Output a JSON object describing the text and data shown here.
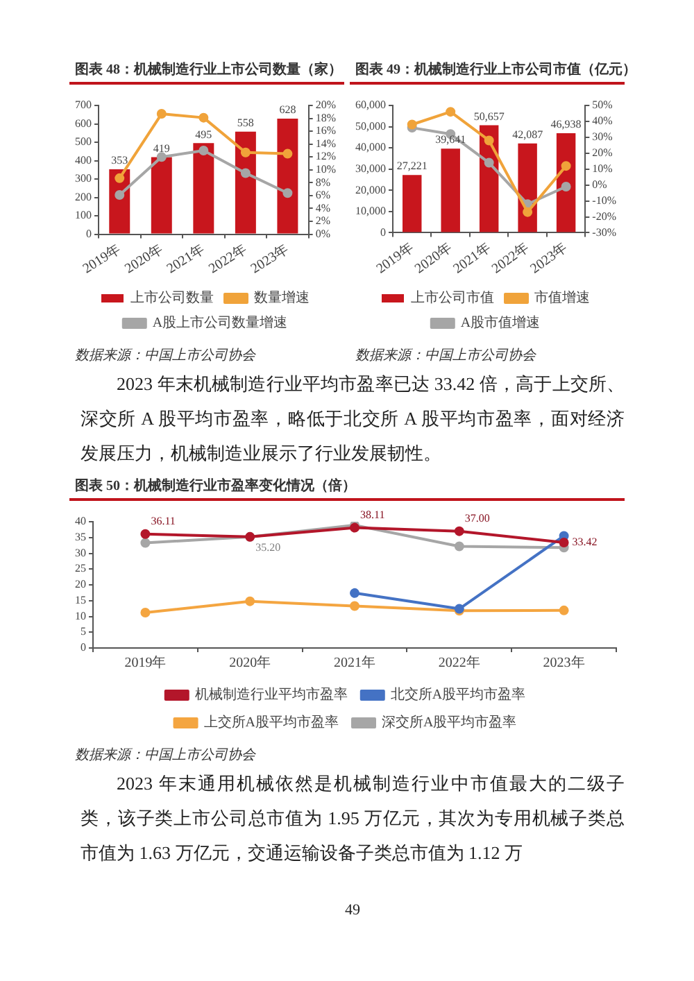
{
  "chart_data": [
    {
      "type": "bar",
      "title": "图表 48：机械制造行业上市公司数量（家）",
      "categories": [
        "2019年",
        "2020年",
        "2021年",
        "2022年",
        "2023年"
      ],
      "series": [
        {
          "name": "上市公司数量",
          "type": "bar",
          "color": "#c8161d",
          "values": [
            353,
            419,
            495,
            558,
            628
          ],
          "value_labels": [
            "353",
            "419",
            "495",
            "558",
            "628"
          ]
        },
        {
          "name": "数量增速",
          "type": "line",
          "axis": "y2",
          "color": "#f0a33a",
          "values": [
            8.7,
            18.7,
            18.1,
            12.7,
            12.5
          ]
        },
        {
          "name": "A股上市公司数量增速",
          "type": "line",
          "axis": "y2",
          "color": "#a6a6a6",
          "values": [
            6.1,
            12.0,
            13.0,
            9.5,
            6.4
          ]
        }
      ],
      "ylim": [
        0,
        700
      ],
      "yticks": [
        0,
        100,
        200,
        300,
        400,
        500,
        600,
        700
      ],
      "y2lim": [
        0,
        20
      ],
      "y2ticks": [
        {
          "value": 0,
          "label": "0%"
        },
        {
          "value": 2,
          "label": "2%"
        },
        {
          "value": 4,
          "label": "4%"
        },
        {
          "value": 6,
          "label": "6%"
        },
        {
          "value": 8,
          "label": "8%"
        },
        {
          "value": 10,
          "label": "10%"
        },
        {
          "value": 12,
          "label": "12%"
        },
        {
          "value": 14,
          "label": "14%"
        },
        {
          "value": 16,
          "label": "16%"
        },
        {
          "value": 18,
          "label": "18%"
        },
        {
          "value": 20,
          "label": "20%"
        }
      ],
      "legend": "bottom",
      "marker": "circle",
      "grid": false,
      "annotations": [
        "数据来源：中国上市公司协会"
      ]
    },
    {
      "type": "bar",
      "title": "图表 49：机械制造行业上市公司市值（亿元）",
      "categories": [
        "2019年",
        "2020年",
        "2021年",
        "2022年",
        "2023年"
      ],
      "series": [
        {
          "name": "上市公司市值",
          "type": "bar",
          "color": "#c8161d",
          "values": [
            27221,
            39641,
            50657,
            42087,
            46938
          ],
          "value_labels": [
            "27,221",
            "39,641",
            "50,657",
            "42,087",
            "46,938"
          ]
        },
        {
          "name": "市值增速",
          "type": "line",
          "axis": "y2",
          "color": "#f0a33a",
          "values": [
            38,
            46,
            28,
            -17,
            12
          ]
        },
        {
          "name": "A股市值增速",
          "type": "line",
          "axis": "y2",
          "color": "#a6a6a6",
          "values": [
            36,
            32,
            14,
            -12,
            -1
          ]
        }
      ],
      "ylim": [
        0,
        60000
      ],
      "yticks": [
        0,
        {
          "value": 10000,
          "label": "10,000"
        },
        {
          "value": 20000,
          "label": "20,000"
        },
        {
          "value": 30000,
          "label": "30,000"
        },
        {
          "value": 40000,
          "label": "40,000"
        },
        {
          "value": 50000,
          "label": "50,000"
        },
        {
          "value": 60000,
          "label": "60,000"
        }
      ],
      "y2lim": [
        -30,
        50
      ],
      "y2ticks": [
        {
          "value": -30,
          "label": "-30%"
        },
        {
          "value": -20,
          "label": "-20%"
        },
        {
          "value": -10,
          "label": "-10%"
        },
        {
          "value": 0,
          "label": "0%"
        },
        {
          "value": 10,
          "label": "10%"
        },
        {
          "value": 20,
          "label": "20%"
        },
        {
          "value": 30,
          "label": "30%"
        },
        {
          "value": 40,
          "label": "40%"
        },
        {
          "value": 50,
          "label": "50%"
        }
      ],
      "legend": "bottom",
      "marker": "circle",
      "grid": false,
      "annotations": [
        "数据来源：中国上市公司协会"
      ]
    },
    {
      "type": "other",
      "annotations": [
        "2023 年末机械制造行业平均市盈率已达 33.42 倍，高于上交所、深交所 A 股平均市盈率，略低于北交所 A 股平均市盈率，面对经济发展压力，机械制造业展示了行业发展韧性。"
      ]
    },
    {
      "type": "line",
      "title": "图表 50：机械制造行业市盈率变化情况（倍）",
      "categories": [
        "2019年",
        "2020年",
        "2021年",
        "2022年",
        "2023年"
      ],
      "series": [
        {
          "name": "机械制造行业平均市盈率",
          "color": "#b3162a",
          "values": [
            36.11,
            35.2,
            38.11,
            37.0,
            33.42
          ],
          "value_labels": [
            "36.11",
            null,
            "38.11",
            "37.00",
            "33.42"
          ]
        },
        {
          "name": "北交所A股平均市盈率",
          "color": "#4472c4",
          "values": [
            null,
            null,
            17.4,
            12.4,
            35.5
          ]
        },
        {
          "name": "上交所A股平均市盈率",
          "color": "#f4a540",
          "values": [
            11.2,
            14.8,
            13.3,
            11.8,
            11.9
          ]
        },
        {
          "name": "深交所A股平均市盈率",
          "color": "#a6a6a6",
          "values": [
            33.3,
            35.2,
            38.9,
            32.2,
            31.8
          ],
          "value_labels": [
            null,
            "35.20",
            null,
            null,
            null
          ]
        }
      ],
      "ylim": [
        0,
        40
      ],
      "yticks": [
        0,
        5,
        10,
        15,
        20,
        25,
        30,
        35,
        40
      ],
      "legend": "bottom",
      "marker": "circle",
      "grid": false,
      "annotations": [
        "数据来源：中国上市公司协会"
      ]
    },
    {
      "type": "other",
      "annotations": [
        "2023 年末通用机械依然是机械制造行业中市值最大的二级子类，该子类上市公司总市值为 1.95 万亿元，其次为专用机械子类总市值为 1.63 万亿元，交通运输设备子类总市值为 1.12 万"
      ]
    },
    {
      "type": "other",
      "annotations": [
        "49"
      ]
    }
  ]
}
